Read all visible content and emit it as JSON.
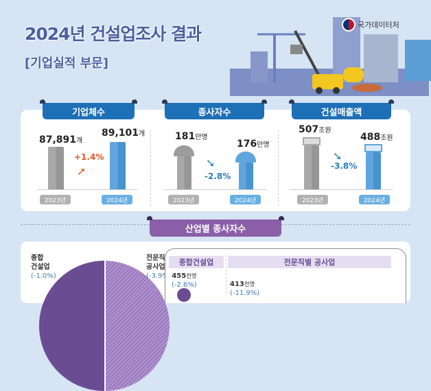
{
  "header": {
    "title": "2024년 건설업조사 결과",
    "subtitle": "[기업실적 부문]",
    "agency": "국가데이터처"
  },
  "panels": [
    {
      "title": "기업체수",
      "y2023": "2023년",
      "y2024": "2024년",
      "v2023": "87,891",
      "v2024": "89,101",
      "unit": "개",
      "change": "+1.4%"
    },
    {
      "title": "종사자수",
      "y2023": "2023년",
      "y2024": "2024년",
      "v2023": "181",
      "v2024": "176",
      "unit": "만명",
      "change": "-2.8%"
    },
    {
      "title": "건설매출액",
      "y2023": "2023년",
      "y2024": "2024년",
      "v2023": "507",
      "v2024": "488",
      "unit": "조원",
      "change": "-3.8%"
    }
  ],
  "industry": {
    "title": "산업별 종사자수",
    "general": {
      "name1": "종합",
      "name2": "건설업",
      "change": "(-1.0%)"
    },
    "special": {
      "name1": "전문직별",
      "name2": "공사업",
      "change": "(-3.9%)"
    },
    "tabs": [
      "종합건설업",
      "전문직별 공사업"
    ],
    "detail_general": {
      "value": "455",
      "unit": "천명",
      "change": "(-2.6%)"
    },
    "detail_special": {
      "value": "413",
      "unit": "천명",
      "change": "(-11.9%)"
    }
  },
  "colors": {
    "blue": "#1d6fb6",
    "purple": "#8a5fa8",
    "up": "#e0592a",
    "down": "#2a7fb8"
  }
}
